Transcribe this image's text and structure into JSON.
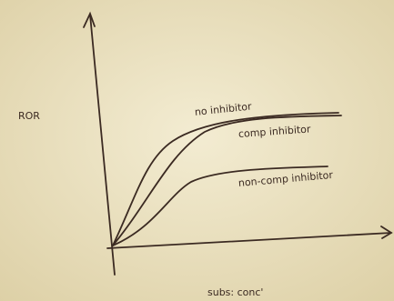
{
  "y_axis_label": "ROR",
  "x_axis_label": "subs: conc'",
  "curve_labels": [
    "no inhibitor",
    "comp inhibitor",
    "non-comp inhibitor"
  ]
}
